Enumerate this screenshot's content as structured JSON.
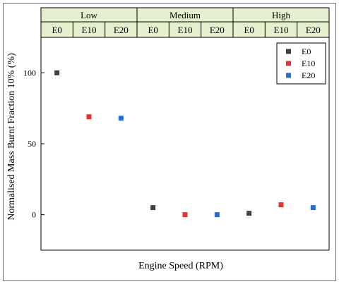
{
  "chart_data": {
    "type": "scatter",
    "title": "",
    "xlabel": "Engine Speed (RPM)",
    "ylabel": "Normalised Mass Burnt Fraction 10% (%)",
    "ylim": [
      -25,
      125
    ],
    "yticks": [
      0,
      50,
      100
    ],
    "groups": [
      "Low",
      "Medium",
      "High"
    ],
    "categories": [
      "E0",
      "E10",
      "E20",
      "E0",
      "E10",
      "E20",
      "E0",
      "E10",
      "E20"
    ],
    "series": [
      {
        "name": "E0",
        "color": "#404040",
        "x_index": [
          0,
          3,
          6
        ],
        "values": [
          100,
          5,
          1
        ]
      },
      {
        "name": "E10",
        "color": "#e83030",
        "x_index": [
          1,
          4,
          7
        ],
        "values": [
          69,
          0,
          7
        ]
      },
      {
        "name": "E20",
        "color": "#1f6fd6",
        "x_index": [
          2,
          5,
          8
        ],
        "values": [
          68,
          0,
          5
        ]
      }
    ],
    "legend_position": "top-right",
    "grid": false
  }
}
